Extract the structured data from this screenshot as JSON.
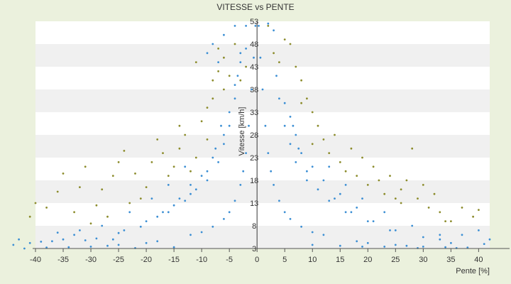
{
  "chart_data": {
    "type": "scatter",
    "title": "VITESSE vs PENTE",
    "xlabel": "Pente [%]",
    "ylabel": "Vitesse [km/h]",
    "xlim": [
      -40,
      42
    ],
    "ylim": [
      3,
      53
    ],
    "x_ticks": [
      -40,
      -35,
      -30,
      -25,
      -20,
      -15,
      -10,
      -5,
      0,
      5,
      10,
      15,
      20,
      25,
      30,
      35,
      40
    ],
    "y_ticks": [
      3,
      8,
      13,
      18,
      23,
      28,
      33,
      38,
      43,
      48,
      53
    ],
    "grid": "horizontal alternating bands",
    "legend": "none",
    "colors": {
      "primary": "#3c8fd4",
      "secondary": "#8c8c2c",
      "axis": "#555555",
      "band_light": "#ffffff",
      "band_dark": "#f0f0f0",
      "background": "#ebf1dd"
    },
    "series": [
      {
        "color": "#3c8fd4",
        "points": [
          [
            -38,
            3.2
          ],
          [
            -34,
            3.3
          ],
          [
            -30,
            3.4
          ],
          [
            -27,
            3.6
          ],
          [
            -25,
            3.8
          ],
          [
            -20,
            4.2
          ],
          [
            -18,
            4.6
          ],
          [
            -12,
            6
          ],
          [
            -10,
            6.6
          ],
          [
            -8,
            7.8
          ],
          [
            -6,
            9.5
          ],
          [
            -5,
            11
          ],
          [
            -4,
            13.5
          ],
          [
            -3,
            17
          ],
          [
            -2.5,
            20
          ],
          [
            -2,
            24
          ],
          [
            -1.5,
            30
          ],
          [
            -1,
            38
          ],
          [
            -0.6,
            45
          ],
          [
            -0.3,
            52
          ],
          [
            0.3,
            52
          ],
          [
            0.6,
            45
          ],
          [
            1,
            38
          ],
          [
            1.5,
            30
          ],
          [
            2,
            24
          ],
          [
            2.5,
            20
          ],
          [
            3,
            17
          ],
          [
            4,
            13.5
          ],
          [
            5,
            11
          ],
          [
            6,
            9.5
          ],
          [
            8,
            7.8
          ],
          [
            10,
            6.6
          ],
          [
            12,
            6
          ],
          [
            18,
            4.6
          ],
          [
            20,
            4.2
          ],
          [
            25,
            3.8
          ],
          [
            27,
            3.6
          ],
          [
            30,
            3.4
          ],
          [
            34,
            3.3
          ],
          [
            38,
            3.2
          ],
          [
            -9,
            18
          ],
          [
            -7,
            22
          ],
          [
            -6,
            26
          ],
          [
            -5,
            30
          ],
          [
            -4,
            36
          ],
          [
            -3.5,
            41
          ],
          [
            3.5,
            41
          ],
          [
            4,
            36
          ],
          [
            5,
            30
          ],
          [
            6,
            26
          ],
          [
            7,
            22
          ],
          [
            9,
            18
          ],
          [
            -16,
            11
          ],
          [
            -13,
            13.5
          ],
          [
            -11,
            16
          ],
          [
            -9,
            20
          ],
          [
            -7.5,
            25
          ],
          [
            -6.5,
            30
          ],
          [
            6.5,
            30
          ],
          [
            7.5,
            25
          ],
          [
            9,
            20
          ],
          [
            11,
            16
          ],
          [
            13,
            13.5
          ],
          [
            16,
            11
          ],
          [
            -24,
            7
          ],
          [
            -20,
            9
          ],
          [
            -17,
            11
          ],
          [
            -14,
            14
          ],
          [
            -12,
            17
          ],
          [
            14,
            14
          ],
          [
            17,
            11
          ],
          [
            20,
            9
          ],
          [
            24,
            7
          ],
          [
            -33,
            6
          ],
          [
            -28,
            8
          ],
          [
            -23,
            11
          ],
          [
            -19,
            14
          ],
          [
            -16,
            17
          ],
          [
            -13,
            21
          ],
          [
            13,
            21
          ],
          [
            16,
            17
          ],
          [
            19,
            14
          ],
          [
            23,
            11
          ],
          [
            28,
            8
          ],
          [
            33,
            6
          ],
          [
            -42,
            3
          ],
          [
            -41,
            4.2
          ],
          [
            -39,
            4.5
          ],
          [
            -36,
            6.5
          ],
          [
            -32,
            7
          ],
          [
            -26,
            5
          ],
          [
            -15,
            3.3
          ],
          [
            -8,
            48
          ],
          [
            -6,
            50
          ],
          [
            -4,
            52
          ],
          [
            -7,
            44
          ],
          [
            -9,
            46
          ],
          [
            2,
            52.5
          ],
          [
            3,
            51
          ],
          [
            -3,
            44
          ],
          [
            -2,
            47
          ],
          [
            42,
            5
          ],
          [
            41,
            4
          ],
          [
            36,
            3.1
          ],
          [
            29,
            3.1
          ],
          [
            23,
            3.4
          ],
          [
            19,
            3.4
          ],
          [
            15,
            3.6
          ],
          [
            10,
            3.8
          ],
          [
            -22,
            3.1
          ],
          [
            -31,
            4.8
          ],
          [
            -35,
            5
          ],
          [
            30,
            5.5
          ],
          [
            25,
            7
          ],
          [
            21,
            9
          ],
          [
            18,
            12
          ],
          [
            15,
            15
          ],
          [
            12,
            18
          ],
          [
            10,
            21
          ],
          [
            8,
            24
          ],
          [
            7,
            28
          ],
          [
            6,
            32
          ],
          [
            5,
            35
          ],
          [
            35,
            4.2
          ],
          [
            40,
            7
          ],
          [
            37,
            6
          ],
          [
            33,
            5
          ],
          [
            -44,
            3.8
          ],
          [
            -43,
            5
          ],
          [
            -37,
            4.6
          ],
          [
            -29,
            5.2
          ],
          [
            -25,
            6.4
          ],
          [
            -21,
            7.8
          ],
          [
            -18,
            10
          ],
          [
            -15,
            12.5
          ],
          [
            -12,
            15
          ],
          [
            -10,
            19
          ],
          [
            -8,
            23
          ],
          [
            -6,
            28
          ],
          [
            -5,
            33
          ],
          [
            -4,
            39
          ],
          [
            -3,
            46
          ],
          [
            -2,
            52
          ]
        ]
      },
      {
        "color": "#8c8c2c",
        "points": [
          [
            -40,
            13
          ],
          [
            -36,
            15.5
          ],
          [
            -35,
            19.5
          ],
          [
            -33,
            11
          ],
          [
            -32,
            16.5
          ],
          [
            -31,
            21
          ],
          [
            -29,
            12.5
          ],
          [
            -28,
            16
          ],
          [
            -26,
            19
          ],
          [
            -25,
            22
          ],
          [
            -24,
            24.5
          ],
          [
            -22,
            19.5
          ],
          [
            -21,
            14
          ],
          [
            -20,
            16.5
          ],
          [
            -19,
            22
          ],
          [
            -18,
            27
          ],
          [
            -17,
            24
          ],
          [
            -16,
            19
          ],
          [
            -15,
            21
          ],
          [
            -14,
            25
          ],
          [
            -13,
            28
          ],
          [
            -12,
            20
          ],
          [
            -11,
            23
          ],
          [
            -11,
            44
          ],
          [
            -10,
            31
          ],
          [
            -9,
            34
          ],
          [
            -8,
            36
          ],
          [
            -8,
            40
          ],
          [
            -7,
            42
          ],
          [
            -7,
            47
          ],
          [
            -6,
            38
          ],
          [
            -6,
            45
          ],
          [
            -5,
            41
          ],
          [
            -4,
            48
          ],
          [
            -3,
            40
          ],
          [
            -2,
            43
          ],
          [
            2,
            52
          ],
          [
            3,
            46
          ],
          [
            4,
            44
          ],
          [
            5,
            49
          ],
          [
            6,
            48
          ],
          [
            7,
            43
          ],
          [
            8,
            40
          ],
          [
            8,
            35
          ],
          [
            9,
            36
          ],
          [
            10,
            33
          ],
          [
            11,
            30
          ],
          [
            12,
            27
          ],
          [
            13,
            24
          ],
          [
            14,
            28
          ],
          [
            15,
            22
          ],
          [
            16,
            20
          ],
          [
            17,
            25
          ],
          [
            18,
            19
          ],
          [
            19,
            23
          ],
          [
            20,
            17
          ],
          [
            21,
            21
          ],
          [
            22,
            18
          ],
          [
            23,
            15
          ],
          [
            24,
            19
          ],
          [
            25,
            14
          ],
          [
            26,
            16
          ],
          [
            27,
            18
          ],
          [
            28,
            25
          ],
          [
            29,
            14
          ],
          [
            30,
            17
          ],
          [
            31,
            12
          ],
          [
            32,
            15
          ],
          [
            33,
            11
          ],
          [
            35,
            9
          ],
          [
            37,
            12
          ],
          [
            40,
            11.5
          ],
          [
            -41,
            10
          ],
          [
            -38,
            12
          ],
          [
            -30,
            8.5
          ],
          [
            -27,
            10
          ],
          [
            -23,
            13
          ],
          [
            -14,
            30
          ],
          [
            -9,
            27
          ],
          [
            10,
            26
          ],
          [
            26,
            13
          ],
          [
            34,
            9
          ],
          [
            39,
            10
          ]
        ]
      }
    ]
  }
}
